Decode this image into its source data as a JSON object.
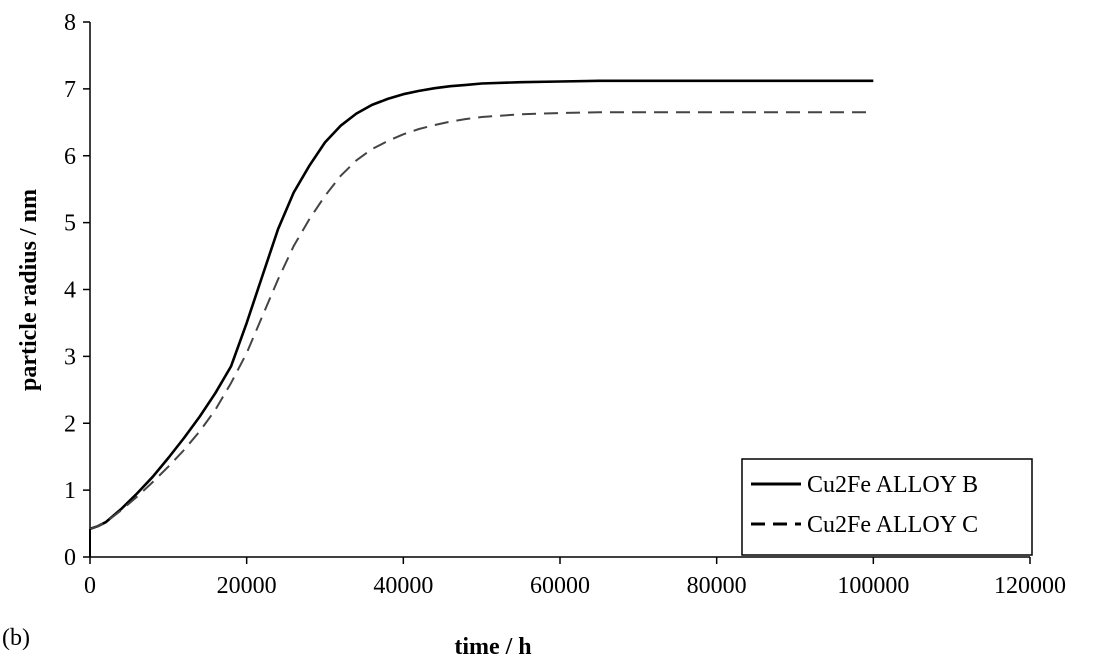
{
  "chart_data": {
    "type": "line",
    "panel_label": "(b)",
    "title": "",
    "xlabel": "time / h",
    "ylabel": "particle radius / nm",
    "xlim": [
      0,
      120000
    ],
    "ylim": [
      0,
      8
    ],
    "xticks": [
      0,
      20000,
      40000,
      60000,
      80000,
      100000,
      120000
    ],
    "yticks": [
      0,
      1,
      2,
      3,
      4,
      5,
      6,
      7,
      8
    ],
    "grid": false,
    "legend_position": "bottom-right",
    "series": [
      {
        "name": "Cu2Fe ALLOY B",
        "line_style": "solid",
        "color": "#000000",
        "x": [
          0,
          1000,
          2000,
          4000,
          6000,
          8000,
          10000,
          12000,
          14000,
          16000,
          18000,
          20000,
          22000,
          24000,
          26000,
          28000,
          30000,
          32000,
          34000,
          36000,
          38000,
          40000,
          42000,
          44000,
          46000,
          48000,
          50000,
          55000,
          60000,
          65000,
          70000,
          80000,
          90000,
          100000
        ],
        "y": [
          0.42,
          0.46,
          0.52,
          0.72,
          0.95,
          1.2,
          1.48,
          1.78,
          2.1,
          2.45,
          2.85,
          3.5,
          4.2,
          4.9,
          5.45,
          5.85,
          6.2,
          6.45,
          6.63,
          6.76,
          6.85,
          6.92,
          6.97,
          7.01,
          7.04,
          7.06,
          7.08,
          7.1,
          7.11,
          7.12,
          7.12,
          7.12,
          7.12,
          7.12
        ]
      },
      {
        "name": "Cu2Fe ALLOY C",
        "line_style": "dashed",
        "color": "#000000",
        "x": [
          0,
          1000,
          2000,
          4000,
          6000,
          8000,
          10000,
          12000,
          14000,
          16000,
          18000,
          20000,
          22000,
          24000,
          26000,
          28000,
          30000,
          32000,
          34000,
          36000,
          38000,
          40000,
          42000,
          44000,
          46000,
          48000,
          50000,
          55000,
          60000,
          65000,
          70000,
          80000,
          90000,
          100000
        ],
        "y": [
          0.42,
          0.46,
          0.52,
          0.7,
          0.9,
          1.12,
          1.35,
          1.6,
          1.88,
          2.2,
          2.6,
          3.05,
          3.6,
          4.15,
          4.65,
          5.05,
          5.4,
          5.7,
          5.93,
          6.1,
          6.22,
          6.32,
          6.4,
          6.46,
          6.51,
          6.55,
          6.58,
          6.62,
          6.64,
          6.65,
          6.65,
          6.65,
          6.65,
          6.65
        ]
      }
    ]
  }
}
